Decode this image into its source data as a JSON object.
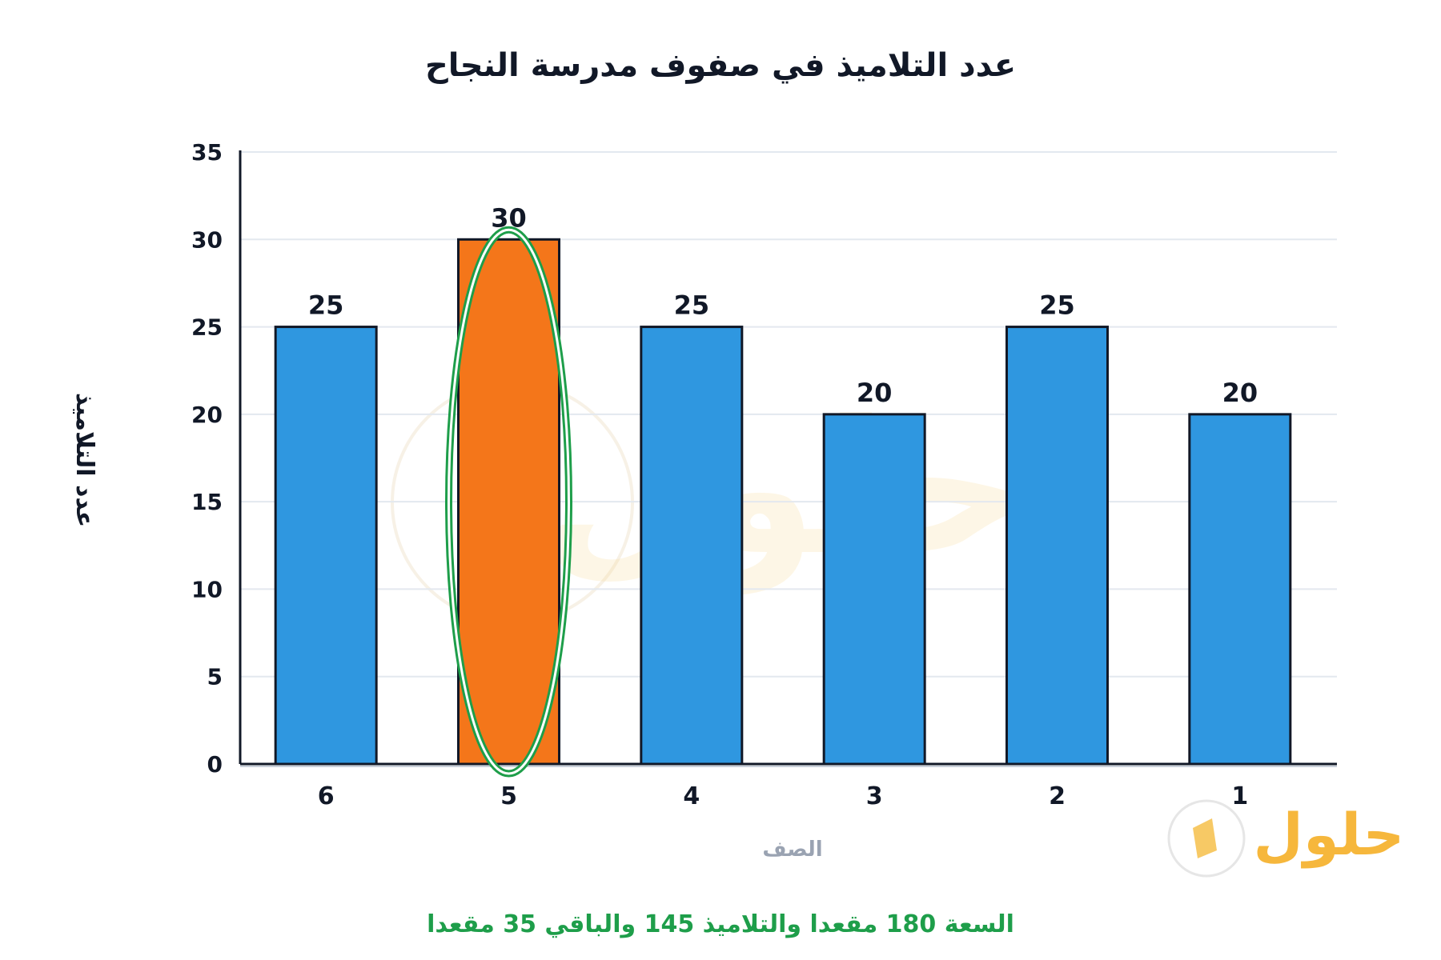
{
  "chart_data": {
    "type": "bar",
    "title": "عدد التلاميذ في صفوف مدرسة النجاح",
    "xlabel": "الصف",
    "ylabel": "عدد التلاميذ",
    "categories": [
      "6",
      "5",
      "4",
      "3",
      "2",
      "1"
    ],
    "values": [
      25,
      30,
      25,
      20,
      25,
      20
    ],
    "highlight_index": 1,
    "ylim": [
      0,
      35
    ],
    "yticks": [
      0,
      5,
      10,
      15,
      20,
      25,
      30,
      35
    ],
    "grid": true,
    "colors": {
      "bar": "#2f97e0",
      "highlight": "#f4761a",
      "bar_stroke": "#111827",
      "ellipse_outer": "#1e9e4a",
      "grid": "#e3e8ef"
    }
  },
  "footer": {
    "text": "السعة 180 مقعدا والتلاميذ 145 والباقي 35 مقعدا"
  },
  "logo": {
    "text": "حلول"
  }
}
